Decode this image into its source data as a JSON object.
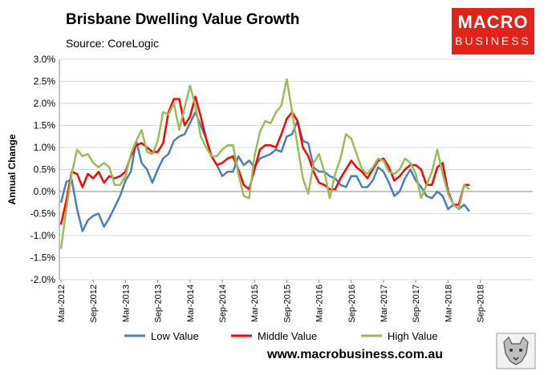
{
  "header": {
    "title": "Brisbane Dwelling Value Growth",
    "source": "Source: CoreLogic"
  },
  "logo": {
    "line1": "MACRO",
    "line2": "BUSINESS"
  },
  "footer": {
    "url": "www.macrobusiness.com.au"
  },
  "chart_data": {
    "type": "line",
    "ylabel": "Annual Change",
    "ylim": [
      -2.0,
      3.0
    ],
    "yticks": [
      -2.0,
      -1.5,
      -1.0,
      -0.5,
      0.0,
      0.5,
      1.0,
      1.5,
      2.0,
      2.5,
      3.0
    ],
    "ytick_labels": [
      "-2.0%",
      "-1.5%",
      "-1.0%",
      "-0.5%",
      "0.0%",
      "0.5%",
      "1.0%",
      "1.5%",
      "2.0%",
      "2.5%",
      "3.0%"
    ],
    "x_start": "Mar-2012",
    "x_end": "Dec-2018",
    "xtick_labels": [
      "Mar-2012",
      "Sep-2012",
      "Mar-2013",
      "Sep-2013",
      "Mar-2014",
      "Sep-2014",
      "Mar-2015",
      "Sep-2015",
      "Mar-2016",
      "Sep-2016",
      "Mar-2017",
      "Sep-2017",
      "Mar-2018",
      "Sep-2018"
    ],
    "grid": "horizontal",
    "legend_position": "bottom",
    "series": [
      {
        "name": "Low Value",
        "color": "#4a7ebb",
        "values": [
          -0.25,
          0.22,
          0.27,
          -0.4,
          -0.9,
          -0.65,
          -0.55,
          -0.5,
          -0.8,
          -0.6,
          -0.35,
          -0.1,
          0.25,
          0.45,
          1.15,
          0.65,
          0.5,
          0.2,
          0.5,
          0.75,
          0.85,
          1.15,
          1.25,
          1.3,
          1.55,
          1.8,
          1.5,
          1.2,
          0.8,
          0.6,
          0.35,
          0.45,
          0.45,
          0.8,
          0.6,
          0.7,
          0.55,
          0.75,
          0.8,
          0.85,
          0.95,
          0.9,
          1.25,
          1.3,
          1.6,
          1.15,
          1.1,
          0.55,
          0.45,
          0.45,
          0.35,
          0.3,
          0.15,
          0.1,
          0.35,
          0.35,
          0.1,
          0.1,
          0.25,
          0.55,
          0.45,
          0.2,
          -0.1,
          0.0,
          0.3,
          0.5,
          0.25,
          0.1,
          -0.1,
          -0.15,
          0.0,
          -0.1,
          -0.4,
          -0.3,
          -0.4,
          -0.3,
          -0.45
        ]
      },
      {
        "name": "Middle Value",
        "color": "#ff0000",
        "values": [
          -0.75,
          -0.2,
          0.45,
          0.4,
          0.1,
          0.4,
          0.3,
          0.45,
          0.2,
          0.35,
          0.3,
          0.35,
          0.45,
          0.8,
          1.05,
          1.1,
          1.0,
          0.9,
          0.9,
          1.1,
          1.8,
          2.1,
          2.1,
          1.5,
          1.7,
          2.15,
          1.7,
          1.2,
          0.8,
          0.6,
          0.65,
          0.75,
          0.8,
          0.5,
          0.15,
          0.05,
          0.5,
          0.95,
          1.05,
          1.05,
          1.0,
          1.3,
          1.65,
          1.8,
          1.6,
          1.0,
          0.8,
          0.45,
          0.2,
          0.15,
          0.05,
          0.05,
          0.3,
          0.5,
          0.7,
          0.55,
          0.45,
          0.3,
          0.5,
          0.7,
          0.75,
          0.55,
          0.25,
          0.35,
          0.5,
          0.6,
          0.6,
          0.5,
          0.15,
          0.15,
          0.55,
          0.65,
          0.0,
          -0.3,
          -0.3,
          0.15,
          0.15
        ]
      },
      {
        "name": "High Value",
        "color": "#9bbb59",
        "values": [
          -1.3,
          -0.4,
          0.4,
          0.95,
          0.8,
          0.85,
          0.65,
          0.55,
          0.65,
          0.55,
          0.15,
          0.15,
          0.35,
          0.85,
          1.15,
          1.4,
          0.9,
          0.85,
          1.15,
          1.8,
          1.75,
          2.0,
          1.4,
          1.9,
          2.4,
          1.95,
          1.25,
          1.0,
          0.8,
          0.8,
          0.95,
          1.05,
          1.05,
          0.4,
          -0.1,
          -0.15,
          0.8,
          1.35,
          1.6,
          1.55,
          1.8,
          1.95,
          2.55,
          1.8,
          1.05,
          0.3,
          -0.05,
          0.65,
          0.85,
          0.45,
          -0.15,
          0.4,
          0.75,
          1.3,
          1.2,
          0.85,
          0.5,
          0.4,
          0.55,
          0.75,
          0.7,
          0.45,
          0.4,
          0.5,
          0.75,
          0.65,
          0.4,
          -0.15,
          0.15,
          0.45,
          0.95,
          0.4,
          -0.05,
          -0.3,
          -0.4,
          0.15,
          0.05
        ]
      }
    ]
  }
}
